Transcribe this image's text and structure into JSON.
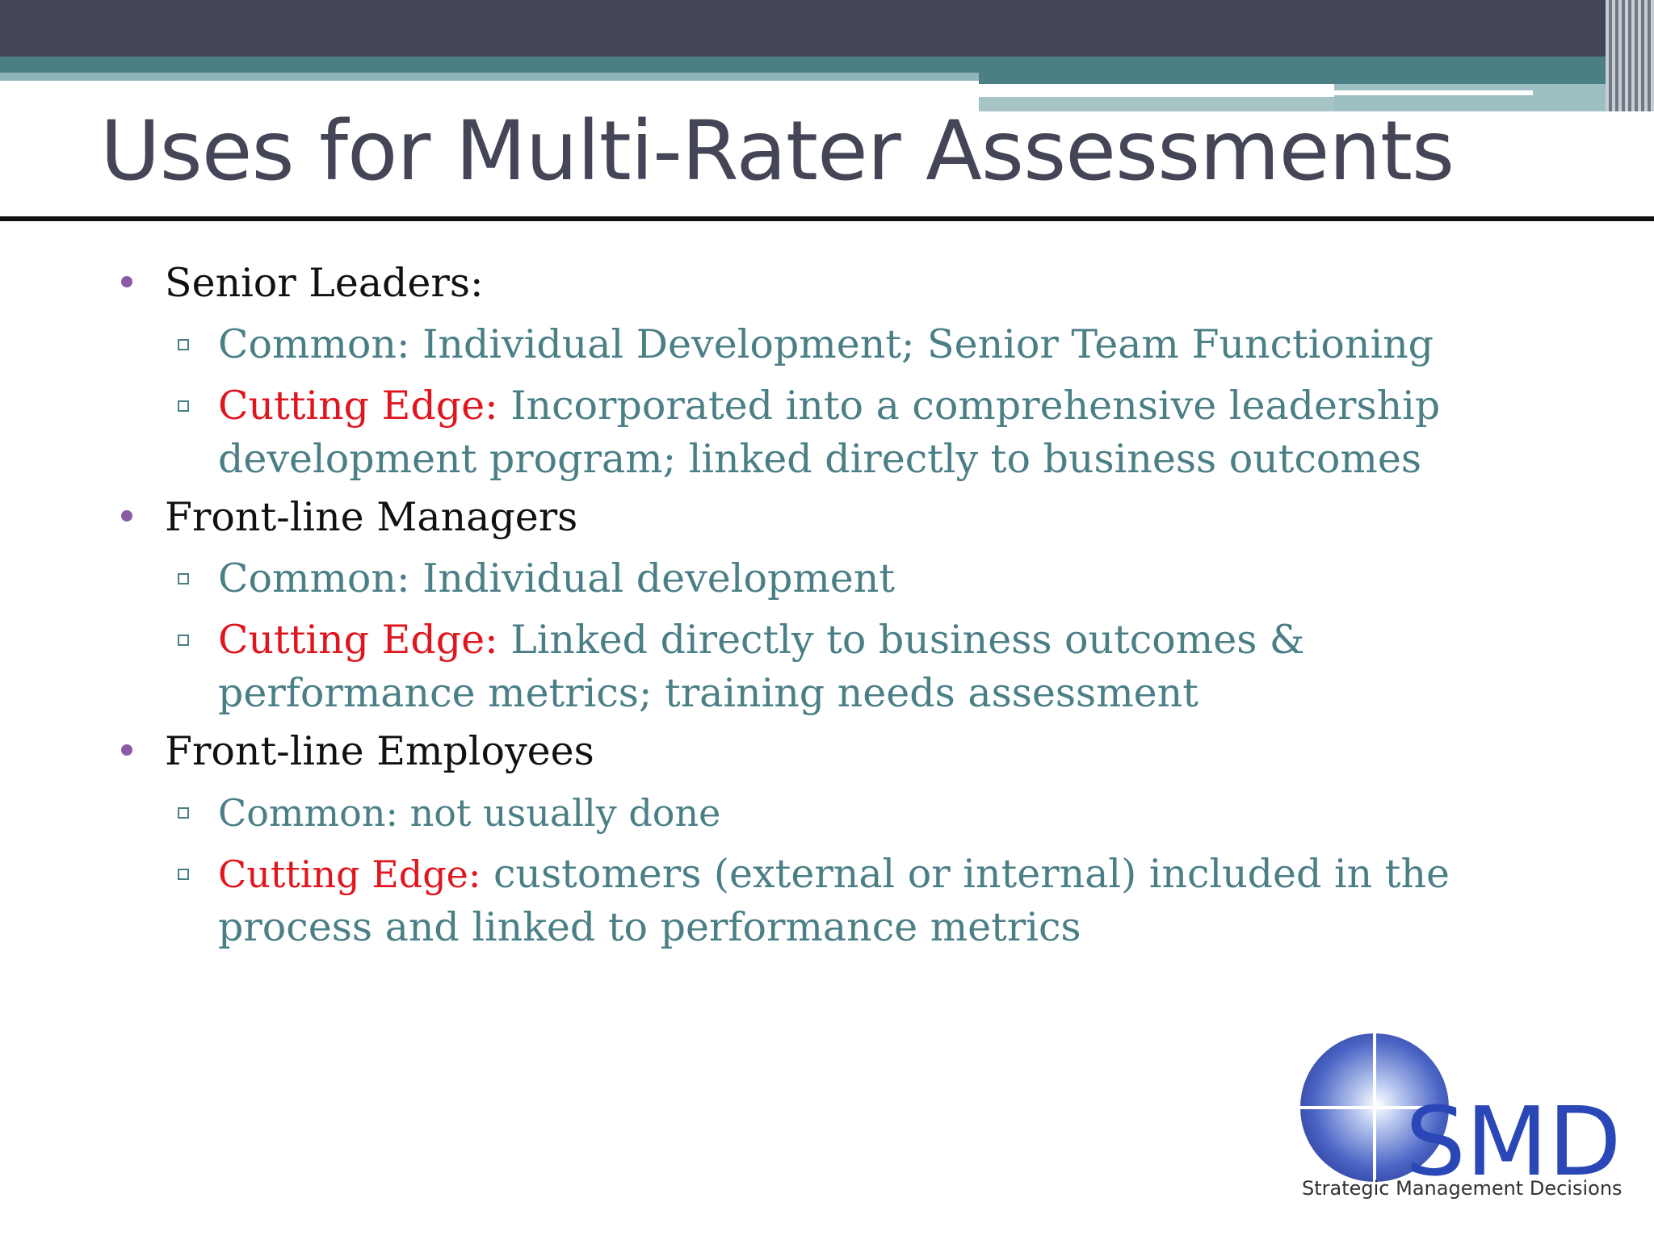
{
  "slide": {
    "title": "Uses for Multi-Rater Assessments",
    "sections": [
      {
        "heading": "Senior Leaders:",
        "items": [
          {
            "label": "",
            "text": "Common: Individual Development; Senior Team Functioning"
          },
          {
            "label": "Cutting Edge:",
            "text": " Incorporated into a comprehensive leadership development program; linked directly to business outcomes"
          }
        ]
      },
      {
        "heading": "Front-line Managers",
        "items": [
          {
            "label": "",
            "text": "Common: Individual development"
          },
          {
            "label": "Cutting Edge:",
            "text": " Linked directly to business outcomes & performance metrics; training needs assessment"
          }
        ]
      },
      {
        "heading": "Front-line Employees",
        "items": [
          {
            "label": "",
            "text": "Common: not usually done"
          },
          {
            "label": "Cutting Edge:",
            "text": " customers (external or internal) included in the process and linked to performance metrics"
          }
        ]
      }
    ],
    "logo": {
      "wordmark": "SMD",
      "caption": "Strategic Management Decisions"
    }
  },
  "colors": {
    "title": "#444556",
    "accent_teal": "#4a7f86",
    "cutting_edge_red": "#e0161e",
    "bullet_purple": "#8a5aa6"
  }
}
